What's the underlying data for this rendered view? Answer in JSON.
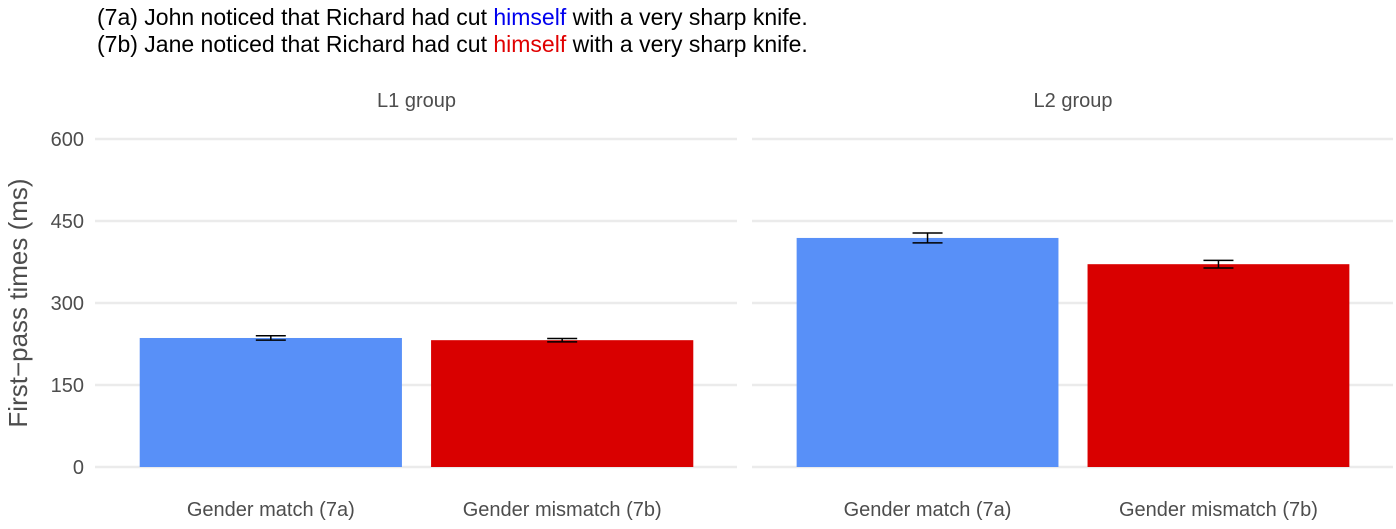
{
  "header": {
    "lines": [
      [
        {
          "text": "(7a) John noticed that Richard had cut "
        },
        {
          "text": "himself",
          "color": "#0000ee"
        },
        {
          "text": " with a very sharp knife."
        }
      ],
      [
        {
          "text": "(7b) Jane noticed that Richard had cut "
        },
        {
          "text": "himself",
          "color": "#e00000"
        },
        {
          "text": " with a very sharp knife."
        }
      ]
    ]
  },
  "chart_data": [
    {
      "type": "bar",
      "title": "L1 group",
      "y_label": "First−pass times (ms)",
      "categories": [
        "Gender match (7a)",
        "Gender mismatch (7b)"
      ],
      "values": [
        236,
        232
      ],
      "errors": [
        4,
        3
      ],
      "colors": [
        "#5890f8",
        "#d90000"
      ],
      "ylim": [
        0,
        600
      ],
      "yticks": [
        0,
        150,
        300,
        450,
        600
      ],
      "grid": true
    },
    {
      "type": "bar",
      "title": "L2 group",
      "categories": [
        "Gender match (7a)",
        "Gender mismatch (7b)"
      ],
      "values": [
        419,
        371
      ],
      "errors": [
        9,
        7
      ],
      "colors": [
        "#5890f8",
        "#d90000"
      ],
      "ylim": [
        0,
        600
      ],
      "yticks": [
        0,
        150,
        300,
        450,
        600
      ],
      "grid": true
    }
  ]
}
